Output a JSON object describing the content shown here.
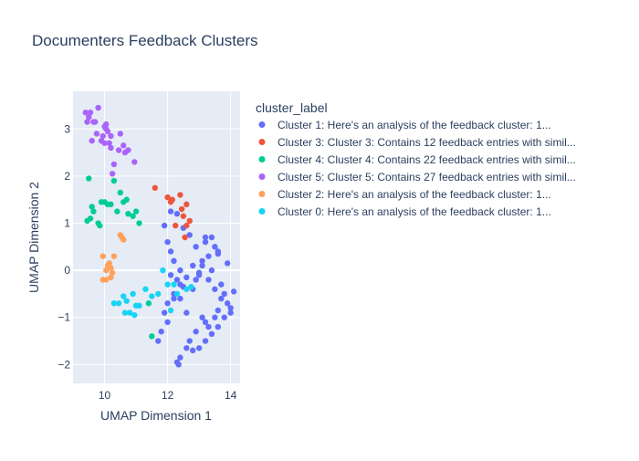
{
  "chart_data": {
    "type": "scatter",
    "title": "Documenters Feedback Clusters",
    "xlabel": "UMAP Dimension 1",
    "ylabel": "UMAP Dimension 2",
    "xlim": [
      9.0,
      14.3
    ],
    "ylim": [
      -2.4,
      3.8
    ],
    "x_ticks": [
      10,
      12,
      14
    ],
    "y_ticks": [
      -2,
      -1,
      0,
      1,
      2,
      3
    ],
    "grid": true,
    "legend_title": "cluster_label",
    "legend_position": "right",
    "series": [
      {
        "name": "Cluster 1: Here's an analysis of the feedback cluster:  1...",
        "color": "#636efa",
        "x": [
          11.9,
          12.0,
          12.1,
          12.2,
          12.4,
          12.1,
          12.3,
          12.5,
          12.2,
          12.0,
          12.6,
          12.8,
          12.4,
          12.9,
          13.1,
          13.3,
          13.5,
          13.2,
          13.6,
          13.4,
          13.0,
          13.7,
          13.8,
          13.9,
          14.0,
          13.5,
          13.3,
          13.1,
          12.9,
          12.7,
          12.6,
          12.8,
          13.0,
          13.2,
          13.4,
          13.6,
          13.8,
          14.0,
          13.7,
          13.5,
          13.3,
          13.1,
          12.9,
          12.7,
          12.5,
          12.3,
          12.1,
          11.9,
          11.7,
          11.8,
          12.0,
          12.2,
          12.4,
          12.6,
          12.8,
          13.0,
          13.2,
          13.4,
          13.6,
          13.9,
          14.1,
          13.6,
          13.2,
          12.4,
          12.3,
          12.35
        ],
        "y": [
          0.95,
          0.6,
          0.4,
          0.2,
          0.0,
          -0.1,
          -0.2,
          -0.35,
          -0.5,
          -0.7,
          -0.9,
          -0.4,
          -0.6,
          -0.2,
          0.1,
          0.3,
          0.5,
          0.7,
          0.4,
          0.0,
          -0.1,
          -0.3,
          -0.5,
          -0.7,
          -0.9,
          -1.0,
          -1.2,
          -1.0,
          -1.3,
          -1.5,
          -1.65,
          -1.7,
          -1.65,
          -1.5,
          -1.35,
          -1.2,
          -1.0,
          -0.8,
          -0.6,
          -0.4,
          -0.2,
          0.2,
          0.5,
          0.75,
          0.9,
          1.2,
          1.25,
          -0.9,
          -1.5,
          -1.3,
          -1.1,
          -0.6,
          -0.3,
          -0.15,
          0.1,
          -0.05,
          0.6,
          0.7,
          0.35,
          0.15,
          -0.45,
          -0.85,
          -1.1,
          -1.85,
          -1.95,
          -2.0
        ]
      },
      {
        "name": "Cluster 3: Cluster 3: Contains 12 feedback entries with simil...",
        "color": "#ef553b",
        "x": [
          11.6,
          12.0,
          12.1,
          12.4,
          12.45,
          12.6,
          12.7,
          12.6,
          12.55,
          12.25,
          12.5,
          12.15
        ],
        "y": [
          1.75,
          1.55,
          1.45,
          1.6,
          1.3,
          1.4,
          1.05,
          0.95,
          0.7,
          0.95,
          1.15,
          1.5
        ]
      },
      {
        "name": "Cluster 4: Cluster 4: Contains 22 feedback entries with simil...",
        "color": "#00cc96",
        "x": [
          9.5,
          9.6,
          9.65,
          9.8,
          9.9,
          10.0,
          10.1,
          10.2,
          10.3,
          10.4,
          10.5,
          10.6,
          10.7,
          10.75,
          10.9,
          11.0,
          11.1,
          11.4,
          11.5,
          9.55,
          9.45,
          9.85
        ],
        "y": [
          1.95,
          1.35,
          1.25,
          1.0,
          1.45,
          1.45,
          1.4,
          1.4,
          1.9,
          1.25,
          1.65,
          1.45,
          1.5,
          1.2,
          1.15,
          1.25,
          1.0,
          -0.7,
          -1.4,
          1.1,
          1.05,
          0.95
        ]
      },
      {
        "name": "Cluster 5: Cluster 5: Contains 27 feedback entries with simil...",
        "color": "#ab63fa",
        "x": [
          9.4,
          9.5,
          9.55,
          9.7,
          9.8,
          9.9,
          10.0,
          10.05,
          10.1,
          10.2,
          10.3,
          10.45,
          10.6,
          10.75,
          10.95,
          9.45,
          9.6,
          9.75,
          10.0,
          10.15,
          10.25,
          10.5,
          10.65,
          10.05,
          9.95,
          9.65,
          10.2
        ],
        "y": [
          3.35,
          3.25,
          3.35,
          3.15,
          3.45,
          2.75,
          3.05,
          3.0,
          2.95,
          2.85,
          2.25,
          2.55,
          2.65,
          2.55,
          2.3,
          3.15,
          2.75,
          2.9,
          2.7,
          2.7,
          2.05,
          2.9,
          2.5,
          3.1,
          2.85,
          3.15,
          2.6
        ]
      },
      {
        "name": "Cluster 2: Here's an analysis of the feedback cluster:  1...",
        "color": "#ffa15a",
        "x": [
          9.95,
          10.05,
          10.1,
          10.2,
          10.25,
          10.3,
          10.5,
          10.55,
          10.6,
          10.05,
          10.2,
          10.15,
          9.95
        ],
        "y": [
          0.3,
          0.0,
          0.1,
          0.05,
          -0.05,
          0.3,
          0.75,
          0.7,
          0.65,
          -0.2,
          -0.15,
          0.15,
          -0.2
        ]
      },
      {
        "name": "Cluster 0: Here's an analysis of the feedback cluster:  1...",
        "color": "#19d3f3",
        "x": [
          10.3,
          10.45,
          10.6,
          10.7,
          10.8,
          10.9,
          11.0,
          11.1,
          11.3,
          11.5,
          11.7,
          11.85,
          12.0,
          12.2,
          12.3,
          12.6,
          12.75,
          10.65,
          10.95,
          12.1
        ],
        "y": [
          -0.7,
          -0.7,
          -0.55,
          -0.65,
          -0.9,
          -0.5,
          -0.75,
          -0.75,
          -0.4,
          -0.55,
          -0.5,
          0.0,
          -0.3,
          -0.3,
          -0.5,
          -0.4,
          -0.35,
          -0.9,
          -0.95,
          -0.85
        ]
      }
    ]
  }
}
